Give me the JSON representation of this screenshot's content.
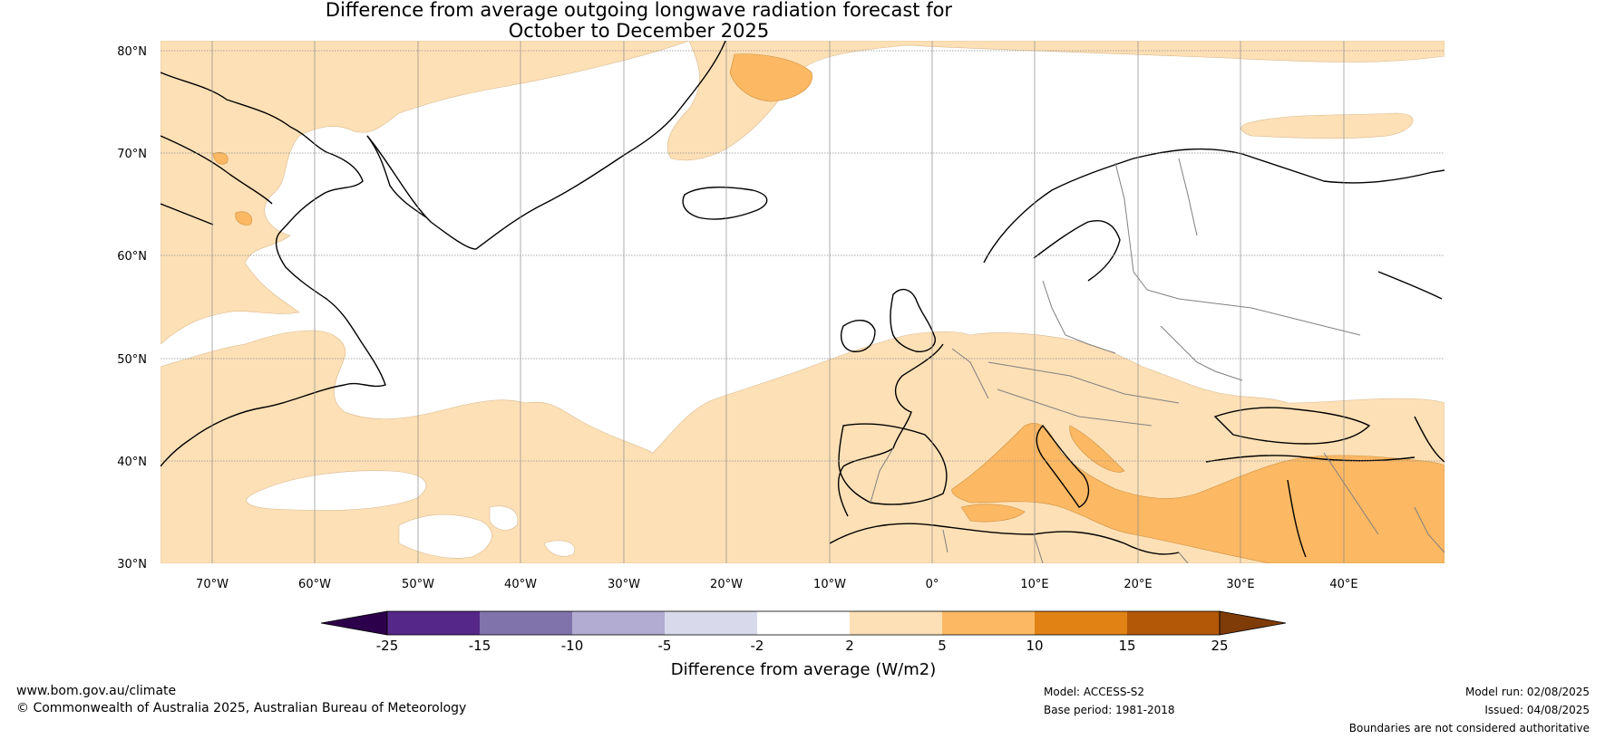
{
  "title_line1": "Difference from average outgoing longwave radiation forecast for",
  "title_line2": "October to December 2025",
  "lat_labels": [
    "80°N",
    "70°N",
    "60°N",
    "50°N",
    "40°N",
    "30°N"
  ],
  "lon_labels": [
    "70°W",
    "60°W",
    "50°W",
    "40°W",
    "30°W",
    "20°W",
    "10°W",
    "0°",
    "10°E",
    "20°E",
    "30°E",
    "40°E"
  ],
  "colorbar": {
    "title": "Difference from average (W/m2)",
    "ticks": [
      "-25",
      "-15",
      "-10",
      "-5",
      "-2",
      "2",
      "5",
      "10",
      "15",
      "25"
    ],
    "colors": {
      "lt_m25": "#2d004b",
      "m25_m15": "#542788",
      "m15_m10": "#8073ac",
      "m10_m5": "#b2abd2",
      "m5_m2": "#d8daeb",
      "m2_2": "#ffffff",
      "p2_5": "#fee0b6",
      "p5_10": "#fdb863",
      "p10_15": "#e08214",
      "p15_25": "#b35806",
      "gt_25": "#7f3b08"
    }
  },
  "footer": {
    "website": "www.bom.gov.au/climate",
    "copyright": "© Commonwealth of Australia 2025, Australian Bureau of Meteorology",
    "model": "Model: ACCESS-S2",
    "base_period": "Base period: 1981-2018",
    "model_run": "Model run: 02/08/2025",
    "issued": "Issued: 04/08/2025",
    "disclaimer": "Boundaries are not considered authoritative"
  }
}
